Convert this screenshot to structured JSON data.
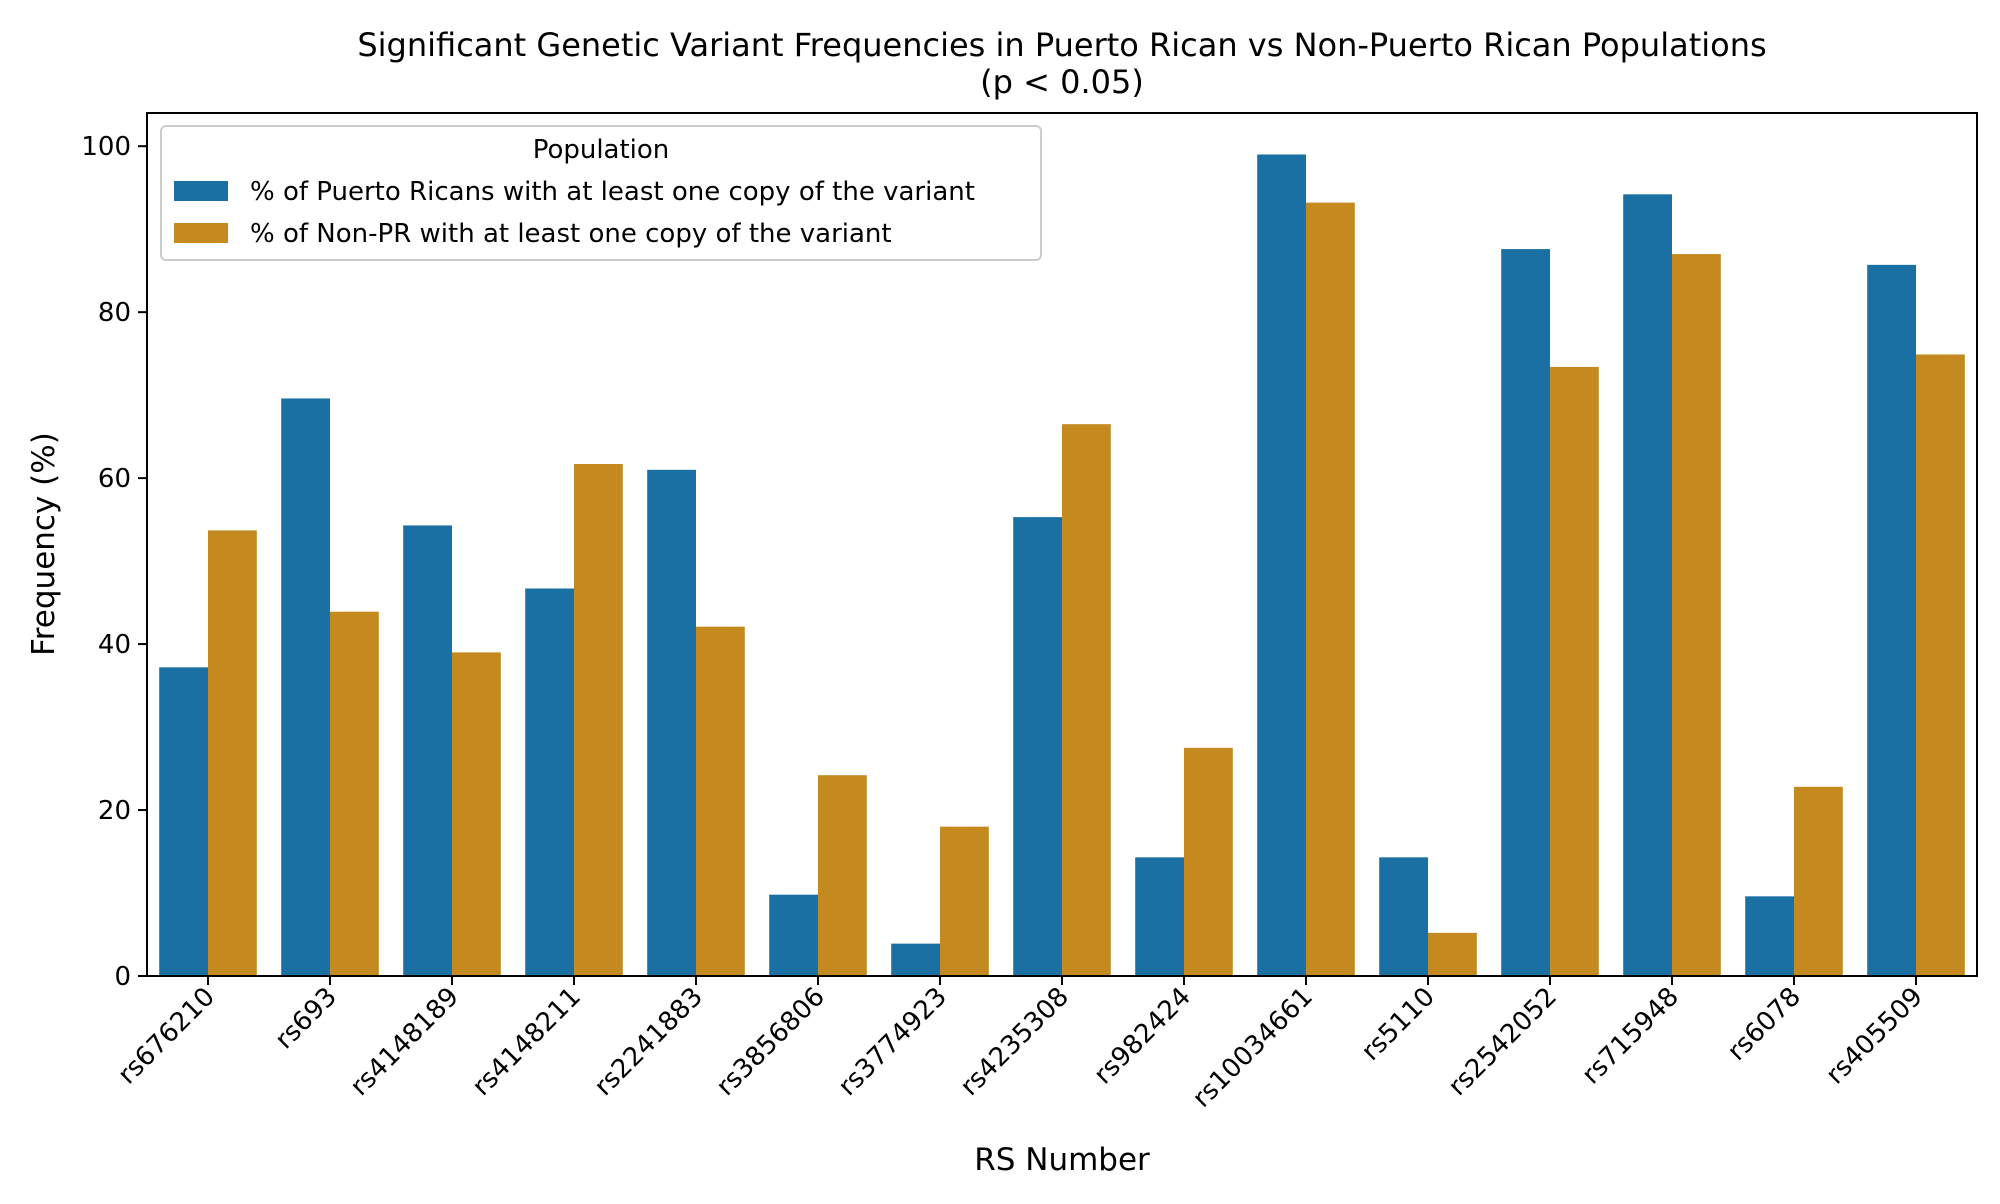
{
  "chart_data": {
    "type": "bar",
    "title_line1": "Significant Genetic Variant Frequencies in Puerto Rican vs Non-Puerto Rican Populations",
    "title_line2": "(p < 0.05)",
    "xlabel": "RS Number",
    "ylabel": "Frequency (%)",
    "ylim": [
      0,
      104
    ],
    "yticks": [
      0,
      20,
      40,
      60,
      80,
      100
    ],
    "grid": false,
    "legend": {
      "title": "Population",
      "placement": "top-left"
    },
    "categories": [
      "rs676210",
      "rs693",
      "rs4148189",
      "rs4148211",
      "rs2241883",
      "rs3856806",
      "rs3774923",
      "rs4235308",
      "rs982424",
      "rs10034661",
      "rs5110",
      "rs2542052",
      "rs715948",
      "rs6078",
      "rs405509"
    ],
    "series": [
      {
        "name": "% of Puerto Ricans with at least one copy of the variant",
        "color": "#1a6fa3",
        "values": [
          37.2,
          69.6,
          54.3,
          46.7,
          61.0,
          9.8,
          3.9,
          55.3,
          14.3,
          99.0,
          14.3,
          87.6,
          94.2,
          9.6,
          85.7
        ]
      },
      {
        "name": "% of Non-PR with at least one copy of the variant",
        "color": "#c48a1f",
        "values": [
          53.7,
          43.9,
          39.0,
          61.7,
          42.1,
          24.2,
          18.0,
          66.5,
          27.5,
          93.2,
          5.2,
          73.4,
          87.0,
          22.8,
          74.9
        ]
      }
    ]
  }
}
